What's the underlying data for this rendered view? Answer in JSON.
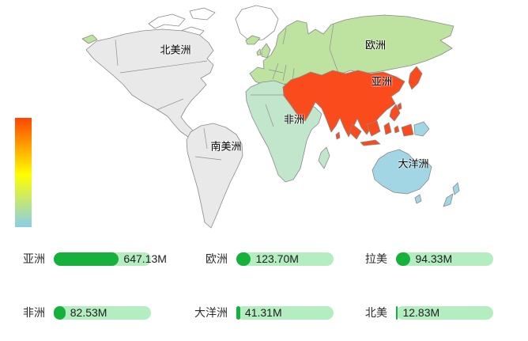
{
  "chart_data": [
    {
      "type": "heatmap",
      "subtype": "world-choropleth-map",
      "title": "",
      "categories": [
        "亚洲",
        "欧洲",
        "拉美",
        "非洲",
        "大洋洲",
        "北美"
      ],
      "values": [
        647.13,
        123.7,
        94.33,
        82.53,
        41.31,
        12.83
      ],
      "unit": "M",
      "legend_position": "left-middle",
      "visual_map_gradient_top_to_bottom": [
        "#ff4500",
        "#ffff00",
        "#87ceeb"
      ]
    },
    {
      "type": "bar",
      "categories": [
        "亚洲",
        "欧洲",
        "拉美",
        "非洲",
        "大洋洲",
        "北美"
      ],
      "values": [
        647.13,
        123.7,
        94.33,
        82.53,
        41.31,
        12.83
      ],
      "value_labels": [
        "647.13M",
        "123.70M",
        "94.33M",
        "82.53M",
        "41.31M",
        "12.83M"
      ],
      "bar_fill_color": "#16b13c",
      "bar_track_color": "#b4edc0"
    }
  ],
  "map": {
    "border_color": "#8a8a8a",
    "other_land_color": "#ffffff",
    "visual_map": {
      "colors": [
        "#ff4500",
        "#ffff00",
        "#87ceeb"
      ]
    },
    "regions": {
      "north_america": {
        "label": "北美洲",
        "color": "#e9e9e9"
      },
      "south_america": {
        "label": "南美洲",
        "color": "#e9e9e9"
      },
      "europe": {
        "label": "欧洲",
        "color": "#bee3a0"
      },
      "asia": {
        "label": "亚洲",
        "color": "#fa4b1c"
      },
      "africa": {
        "label": "非洲",
        "color": "#c2e6cc"
      },
      "oceania": {
        "label": "大洋洲",
        "color": "#a3d6e4"
      }
    }
  },
  "stats": {
    "bar_fill_color": "#16b13c",
    "bar_track_color": "#b4edc0",
    "items": [
      {
        "label": "亚洲",
        "value": "647.13M",
        "fill_pct": 67
      },
      {
        "label": "欧洲",
        "value": "123.70M",
        "fill_pct": 15
      },
      {
        "label": "拉美",
        "value": "94.33M",
        "fill_pct": 15
      },
      {
        "label": "非洲",
        "value": "82.53M",
        "fill_pct": 12
      },
      {
        "label": "大洋洲",
        "value": "41.31M",
        "fill_pct": 4
      },
      {
        "label": "北美",
        "value": "12.83M",
        "fill_pct": 2
      }
    ]
  }
}
